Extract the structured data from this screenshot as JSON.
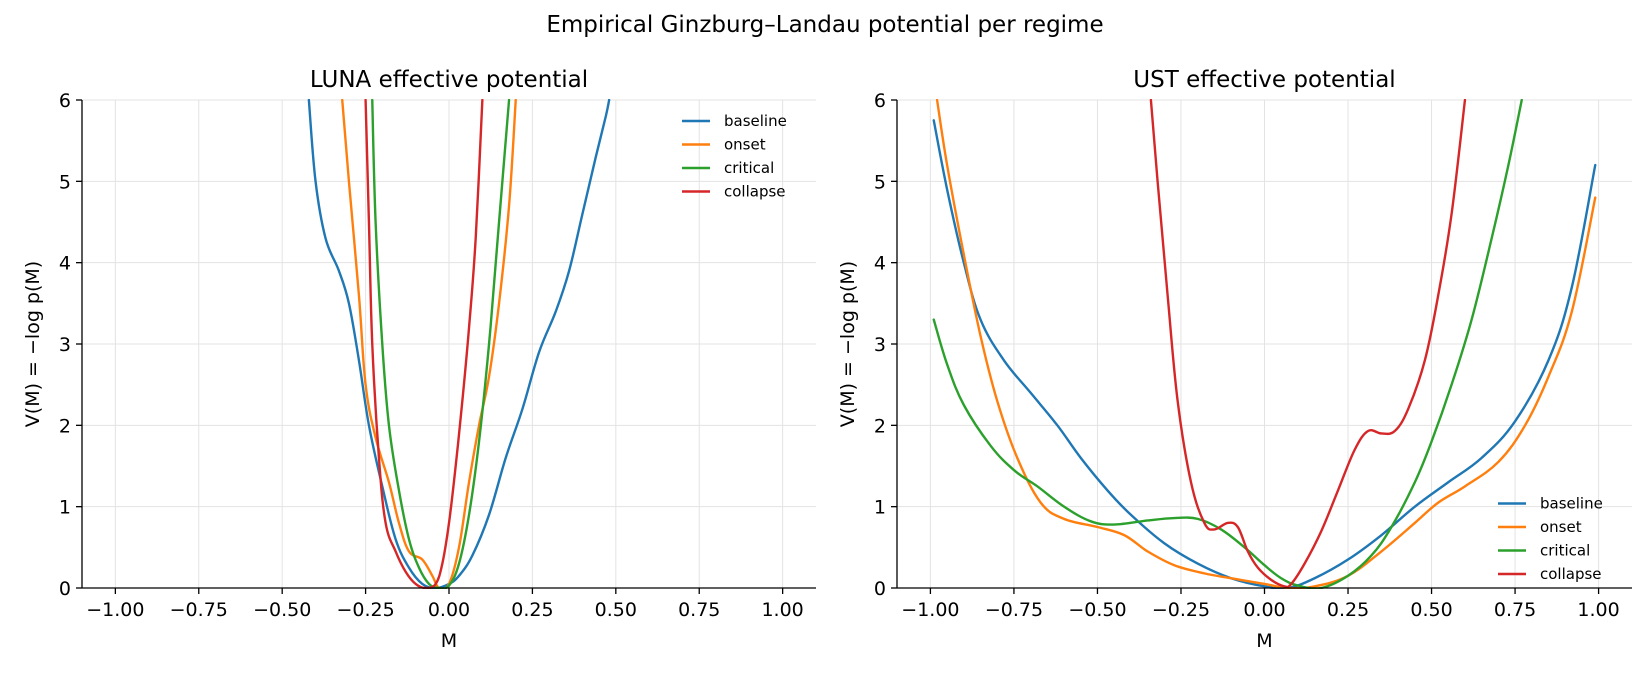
{
  "figure_title": "Empirical Ginzburg–Landau potential per regime",
  "chart_data": [
    {
      "type": "line",
      "title": "LUNA  effective potential",
      "xlabel": "M",
      "ylabel": "V(M) = −log p(M)",
      "xlim": [
        -1.1,
        1.1
      ],
      "ylim": [
        0,
        6
      ],
      "xticks": [
        -1.0,
        -0.75,
        -0.5,
        -0.25,
        0.0,
        0.25,
        0.5,
        0.75,
        1.0
      ],
      "xtick_labels": [
        "−1.00",
        "−0.75",
        "−0.50",
        "−0.25",
        "0.00",
        "0.25",
        "0.50",
        "0.75",
        "1.00"
      ],
      "yticks": [
        0,
        1,
        2,
        3,
        4,
        5,
        6
      ],
      "ytick_labels": [
        "0",
        "1",
        "2",
        "3",
        "4",
        "5",
        "6"
      ],
      "grid": true,
      "legend_position": "top-right",
      "series": [
        {
          "name": "baseline",
          "color": "#1f77b4",
          "points": [
            [
              -0.42,
              6.0
            ],
            [
              -0.4,
              5.0
            ],
            [
              -0.37,
              4.3
            ],
            [
              -0.33,
              3.9
            ],
            [
              -0.3,
              3.5
            ],
            [
              -0.27,
              2.8
            ],
            [
              -0.24,
              2.0
            ],
            [
              -0.2,
              1.25
            ],
            [
              -0.16,
              0.6
            ],
            [
              -0.12,
              0.25
            ],
            [
              -0.08,
              0.05
            ],
            [
              -0.04,
              0.0
            ],
            [
              0.0,
              0.05
            ],
            [
              0.03,
              0.15
            ],
            [
              0.07,
              0.4
            ],
            [
              0.12,
              0.9
            ],
            [
              0.17,
              1.6
            ],
            [
              0.22,
              2.2
            ],
            [
              0.27,
              2.9
            ],
            [
              0.32,
              3.4
            ],
            [
              0.36,
              3.9
            ],
            [
              0.4,
              4.6
            ],
            [
              0.44,
              5.3
            ],
            [
              0.47,
              5.8
            ],
            [
              0.48,
              6.0
            ]
          ]
        },
        {
          "name": "onset",
          "color": "#ff7f0e",
          "points": [
            [
              -0.32,
              6.0
            ],
            [
              -0.3,
              5.0
            ],
            [
              -0.27,
              3.6
            ],
            [
              -0.25,
              2.5
            ],
            [
              -0.22,
              1.85
            ],
            [
              -0.18,
              1.3
            ],
            [
              -0.15,
              0.8
            ],
            [
              -0.12,
              0.45
            ],
            [
              -0.08,
              0.35
            ],
            [
              -0.05,
              0.15
            ],
            [
              -0.03,
              0.0
            ],
            [
              0.0,
              0.05
            ],
            [
              0.03,
              0.5
            ],
            [
              0.06,
              1.3
            ],
            [
              0.09,
              2.0
            ],
            [
              0.12,
              2.6
            ],
            [
              0.15,
              3.5
            ],
            [
              0.18,
              4.7
            ],
            [
              0.2,
              6.0
            ]
          ]
        },
        {
          "name": "critical",
          "color": "#2ca02c",
          "points": [
            [
              -0.23,
              6.0
            ],
            [
              -0.22,
              4.5
            ],
            [
              -0.2,
              3.0
            ],
            [
              -0.18,
              2.0
            ],
            [
              -0.15,
              1.2
            ],
            [
              -0.12,
              0.6
            ],
            [
              -0.09,
              0.25
            ],
            [
              -0.06,
              0.05
            ],
            [
              -0.03,
              0.0
            ],
            [
              0.0,
              0.03
            ],
            [
              0.03,
              0.3
            ],
            [
              0.06,
              0.9
            ],
            [
              0.09,
              1.8
            ],
            [
              0.12,
              3.0
            ],
            [
              0.15,
              4.5
            ],
            [
              0.18,
              6.0
            ]
          ]
        },
        {
          "name": "collapse",
          "color": "#d62728",
          "points": [
            [
              -0.25,
              6.0
            ],
            [
              -0.24,
              4.5
            ],
            [
              -0.23,
              3.0
            ],
            [
              -0.21,
              1.6
            ],
            [
              -0.19,
              0.8
            ],
            [
              -0.16,
              0.45
            ],
            [
              -0.13,
              0.2
            ],
            [
              -0.1,
              0.05
            ],
            [
              -0.07,
              0.0
            ],
            [
              -0.04,
              0.05
            ],
            [
              -0.02,
              0.3
            ],
            [
              0.0,
              0.8
            ],
            [
              0.02,
              1.5
            ],
            [
              0.04,
              2.3
            ],
            [
              0.06,
              3.2
            ],
            [
              0.08,
              4.3
            ],
            [
              0.1,
              6.0
            ]
          ]
        }
      ]
    },
    {
      "type": "line",
      "title": "UST  effective potential",
      "xlabel": "M",
      "ylabel": "V(M) = −log p(M)",
      "xlim": [
        -1.1,
        1.1
      ],
      "ylim": [
        0,
        6
      ],
      "xticks": [
        -1.0,
        -0.75,
        -0.5,
        -0.25,
        0.0,
        0.25,
        0.5,
        0.75,
        1.0
      ],
      "xtick_labels": [
        "−1.00",
        "−0.75",
        "−0.50",
        "−0.25",
        "0.00",
        "0.25",
        "0.50",
        "0.75",
        "1.00"
      ],
      "yticks": [
        0,
        1,
        2,
        3,
        4,
        5,
        6
      ],
      "ytick_labels": [
        "0",
        "1",
        "2",
        "3",
        "4",
        "5",
        "6"
      ],
      "grid": true,
      "legend_position": "bottom-right",
      "series": [
        {
          "name": "baseline",
          "color": "#1f77b4",
          "points": [
            [
              -0.99,
              5.75
            ],
            [
              -0.95,
              4.9
            ],
            [
              -0.9,
              4.0
            ],
            [
              -0.85,
              3.3
            ],
            [
              -0.78,
              2.8
            ],
            [
              -0.7,
              2.4
            ],
            [
              -0.62,
              2.0
            ],
            [
              -0.55,
              1.6
            ],
            [
              -0.47,
              1.2
            ],
            [
              -0.4,
              0.9
            ],
            [
              -0.3,
              0.55
            ],
            [
              -0.2,
              0.3
            ],
            [
              -0.1,
              0.12
            ],
            [
              0.0,
              0.02
            ],
            [
              0.07,
              0.0
            ],
            [
              0.15,
              0.12
            ],
            [
              0.25,
              0.35
            ],
            [
              0.35,
              0.65
            ],
            [
              0.45,
              1.0
            ],
            [
              0.55,
              1.3
            ],
            [
              0.65,
              1.6
            ],
            [
              0.75,
              2.05
            ],
            [
              0.85,
              2.8
            ],
            [
              0.92,
              3.7
            ],
            [
              0.99,
              5.2
            ]
          ]
        },
        {
          "name": "onset",
          "color": "#ff7f0e",
          "points": [
            [
              -0.98,
              6.0
            ],
            [
              -0.95,
              5.2
            ],
            [
              -0.9,
              4.1
            ],
            [
              -0.85,
              3.1
            ],
            [
              -0.8,
              2.3
            ],
            [
              -0.74,
              1.6
            ],
            [
              -0.67,
              1.05
            ],
            [
              -0.6,
              0.85
            ],
            [
              -0.5,
              0.75
            ],
            [
              -0.42,
              0.65
            ],
            [
              -0.35,
              0.45
            ],
            [
              -0.27,
              0.28
            ],
            [
              -0.18,
              0.18
            ],
            [
              -0.1,
              0.12
            ],
            [
              0.0,
              0.05
            ],
            [
              0.07,
              0.0
            ],
            [
              0.15,
              0.02
            ],
            [
              0.25,
              0.15
            ],
            [
              0.35,
              0.45
            ],
            [
              0.45,
              0.8
            ],
            [
              0.52,
              1.05
            ],
            [
              0.6,
              1.25
            ],
            [
              0.7,
              1.55
            ],
            [
              0.78,
              2.0
            ],
            [
              0.85,
              2.6
            ],
            [
              0.92,
              3.4
            ],
            [
              0.99,
              4.8
            ]
          ]
        },
        {
          "name": "critical",
          "color": "#2ca02c",
          "points": [
            [
              -0.99,
              3.3
            ],
            [
              -0.95,
              2.75
            ],
            [
              -0.9,
              2.25
            ],
            [
              -0.82,
              1.75
            ],
            [
              -0.75,
              1.45
            ],
            [
              -0.68,
              1.25
            ],
            [
              -0.6,
              1.0
            ],
            [
              -0.52,
              0.82
            ],
            [
              -0.45,
              0.78
            ],
            [
              -0.35,
              0.83
            ],
            [
              -0.27,
              0.86
            ],
            [
              -0.2,
              0.85
            ],
            [
              -0.13,
              0.72
            ],
            [
              -0.06,
              0.5
            ],
            [
              0.0,
              0.28
            ],
            [
              0.05,
              0.12
            ],
            [
              0.1,
              0.03
            ],
            [
              0.17,
              0.0
            ],
            [
              0.25,
              0.15
            ],
            [
              0.32,
              0.4
            ],
            [
              0.38,
              0.75
            ],
            [
              0.45,
              1.3
            ],
            [
              0.5,
              1.8
            ],
            [
              0.56,
              2.5
            ],
            [
              0.62,
              3.3
            ],
            [
              0.68,
              4.3
            ],
            [
              0.73,
              5.2
            ],
            [
              0.77,
              6.0
            ]
          ]
        },
        {
          "name": "collapse",
          "color": "#d62728",
          "points": [
            [
              -0.34,
              6.0
            ],
            [
              -0.32,
              5.0
            ],
            [
              -0.29,
              3.6
            ],
            [
              -0.26,
              2.3
            ],
            [
              -0.22,
              1.3
            ],
            [
              -0.18,
              0.8
            ],
            [
              -0.15,
              0.72
            ],
            [
              -0.11,
              0.8
            ],
            [
              -0.08,
              0.75
            ],
            [
              -0.05,
              0.45
            ],
            [
              -0.02,
              0.25
            ],
            [
              0.02,
              0.1
            ],
            [
              0.06,
              0.02
            ],
            [
              0.08,
              0.05
            ],
            [
              0.12,
              0.3
            ],
            [
              0.17,
              0.7
            ],
            [
              0.22,
              1.2
            ],
            [
              0.27,
              1.7
            ],
            [
              0.31,
              1.93
            ],
            [
              0.35,
              1.9
            ],
            [
              0.39,
              1.93
            ],
            [
              0.43,
              2.2
            ],
            [
              0.48,
              2.8
            ],
            [
              0.52,
              3.6
            ],
            [
              0.56,
              4.6
            ],
            [
              0.6,
              6.0
            ]
          ]
        }
      ]
    }
  ]
}
